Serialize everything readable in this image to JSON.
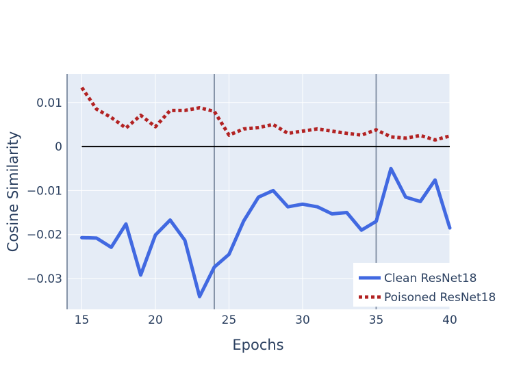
{
  "chart_data": {
    "type": "line",
    "title": "",
    "xlabel": "Epochs",
    "ylabel": "Cosine Similarity",
    "xlim": [
      14,
      40
    ],
    "ylim": [
      -0.037,
      0.0165
    ],
    "x_ticks": [
      15,
      20,
      25,
      30,
      35,
      40
    ],
    "x_tick_labels": [
      "15",
      "20",
      "25",
      "30",
      "35",
      "40"
    ],
    "y_ticks": [
      0.01,
      0,
      -0.01,
      -0.02,
      -0.03
    ],
    "y_tick_labels": [
      "0.01",
      "0",
      "−0.01",
      "−0.02",
      "−0.03"
    ],
    "grid": true,
    "legend_position": "bottom-right",
    "vertical_lines": [
      14,
      24,
      35
    ],
    "reference_line_y": 0,
    "x": [
      15,
      16,
      17,
      18,
      19,
      20,
      21,
      22,
      23,
      24,
      25,
      26,
      27,
      28,
      29,
      30,
      31,
      32,
      33,
      34,
      35,
      36,
      37,
      38,
      39,
      40
    ],
    "series": [
      {
        "name": "Clean ResNet18",
        "color": "#4169E1",
        "style": "solid",
        "values": [
          -0.0207,
          -0.0208,
          -0.0229,
          -0.0176,
          -0.0292,
          -0.0201,
          -0.0167,
          -0.0213,
          -0.0341,
          -0.0274,
          -0.0245,
          -0.0169,
          -0.0115,
          -0.01,
          -0.0137,
          -0.0131,
          -0.0137,
          -0.0153,
          -0.015,
          -0.019,
          -0.017,
          -0.005,
          -0.0115,
          -0.0125,
          -0.0076,
          -0.0185
        ]
      },
      {
        "name": "Poisoned ResNet18",
        "color": "#B22222",
        "style": "dotted",
        "values": [
          0.0134,
          0.0085,
          0.0066,
          0.0042,
          0.0071,
          0.0045,
          0.0082,
          0.0082,
          0.0088,
          0.008,
          0.0026,
          0.004,
          0.0043,
          0.005,
          0.003,
          0.0035,
          0.004,
          0.0035,
          0.003,
          0.0026,
          0.0038,
          0.0022,
          0.0019,
          0.0025,
          0.0015,
          0.0024
        ]
      }
    ]
  }
}
